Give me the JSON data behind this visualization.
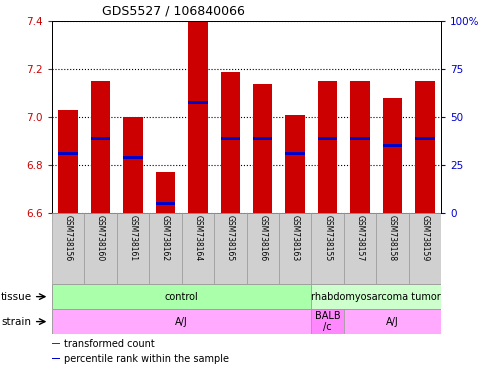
{
  "title": "GDS5527 / 106840066",
  "samples": [
    "GSM738156",
    "GSM738160",
    "GSM738161",
    "GSM738162",
    "GSM738164",
    "GSM738165",
    "GSM738166",
    "GSM738163",
    "GSM738155",
    "GSM738157",
    "GSM738158",
    "GSM738159"
  ],
  "bar_bottom": 6.6,
  "bar_tops": [
    7.03,
    7.15,
    7.0,
    6.77,
    7.4,
    7.19,
    7.14,
    7.01,
    7.15,
    7.15,
    7.08,
    7.15
  ],
  "blue_positions": [
    6.85,
    6.91,
    6.83,
    6.64,
    7.06,
    6.91,
    6.91,
    6.85,
    6.91,
    6.91,
    6.88,
    6.91
  ],
  "ylim_left": [
    6.6,
    7.4
  ],
  "ylim_right": [
    0,
    100
  ],
  "yticks_left": [
    6.6,
    6.8,
    7.0,
    7.2,
    7.4
  ],
  "yticks_right": [
    0,
    25,
    50,
    75,
    100
  ],
  "bar_color": "#cc0000",
  "blue_color": "#0000cc",
  "left_axis_color": "#cc0000",
  "right_axis_color": "#0000cc",
  "tissue_groups": [
    {
      "label": "control",
      "start": 0,
      "end": 8,
      "color": "#aaffaa"
    },
    {
      "label": "rhabdomyosarcoma tumor",
      "start": 8,
      "end": 12,
      "color": "#ccffcc"
    }
  ],
  "strain_groups": [
    {
      "label": "A/J",
      "start": 0,
      "end": 8,
      "color": "#ffaaff"
    },
    {
      "label": "BALB\n/c",
      "start": 8,
      "end": 9,
      "color": "#ff88ff"
    },
    {
      "label": "A/J",
      "start": 9,
      "end": 12,
      "color": "#ffaaff"
    }
  ],
  "tissue_label": "tissue",
  "strain_label": "strain",
  "legend_items": [
    {
      "label": "transformed count",
      "color": "#cc0000"
    },
    {
      "label": "percentile rank within the sample",
      "color": "#0000cc"
    }
  ],
  "bar_width": 0.6,
  "fig_width": 4.93,
  "fig_height": 3.84,
  "dpi": 100
}
